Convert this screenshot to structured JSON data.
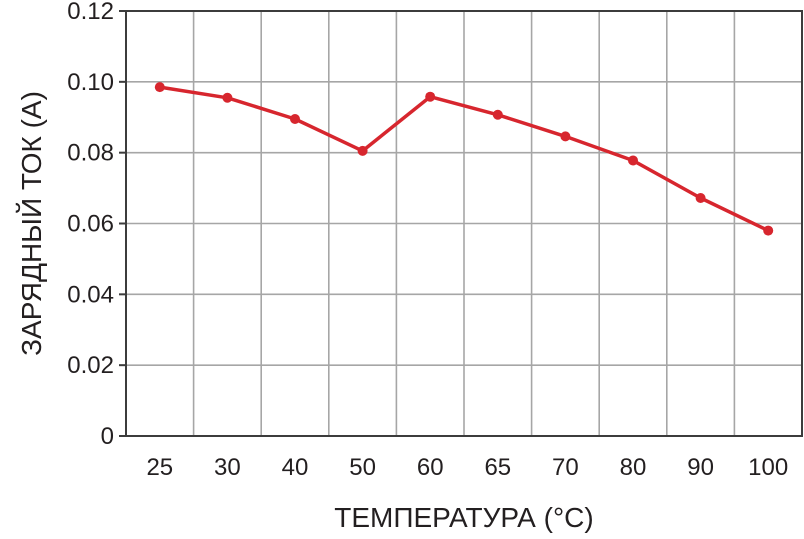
{
  "chart_data": {
    "type": "line",
    "categories": [
      "25",
      "30",
      "40",
      "50",
      "60",
      "65",
      "70",
      "80",
      "90",
      "100"
    ],
    "series": [
      {
        "values": [
          0.0985,
          0.0955,
          0.0895,
          0.0805,
          0.0958,
          0.0907,
          0.0846,
          0.0778,
          0.0672,
          0.058
        ],
        "color": "#d7262e"
      }
    ],
    "xlabel": "ТЕМПЕРАТУРА (°C)",
    "ylabel": "ЗАРЯДНЫЙ ТОК (A)",
    "ylim": [
      0,
      0.12
    ],
    "yticks": [
      "0",
      "0.02",
      "0.04",
      "0.06",
      "0.08",
      "0.10",
      "0.12"
    ],
    "grid": true,
    "colors": {
      "line": "#d7262e",
      "grid": "#a6a6a6",
      "frame": "#3c3c3c",
      "text": "#231f20"
    }
  }
}
